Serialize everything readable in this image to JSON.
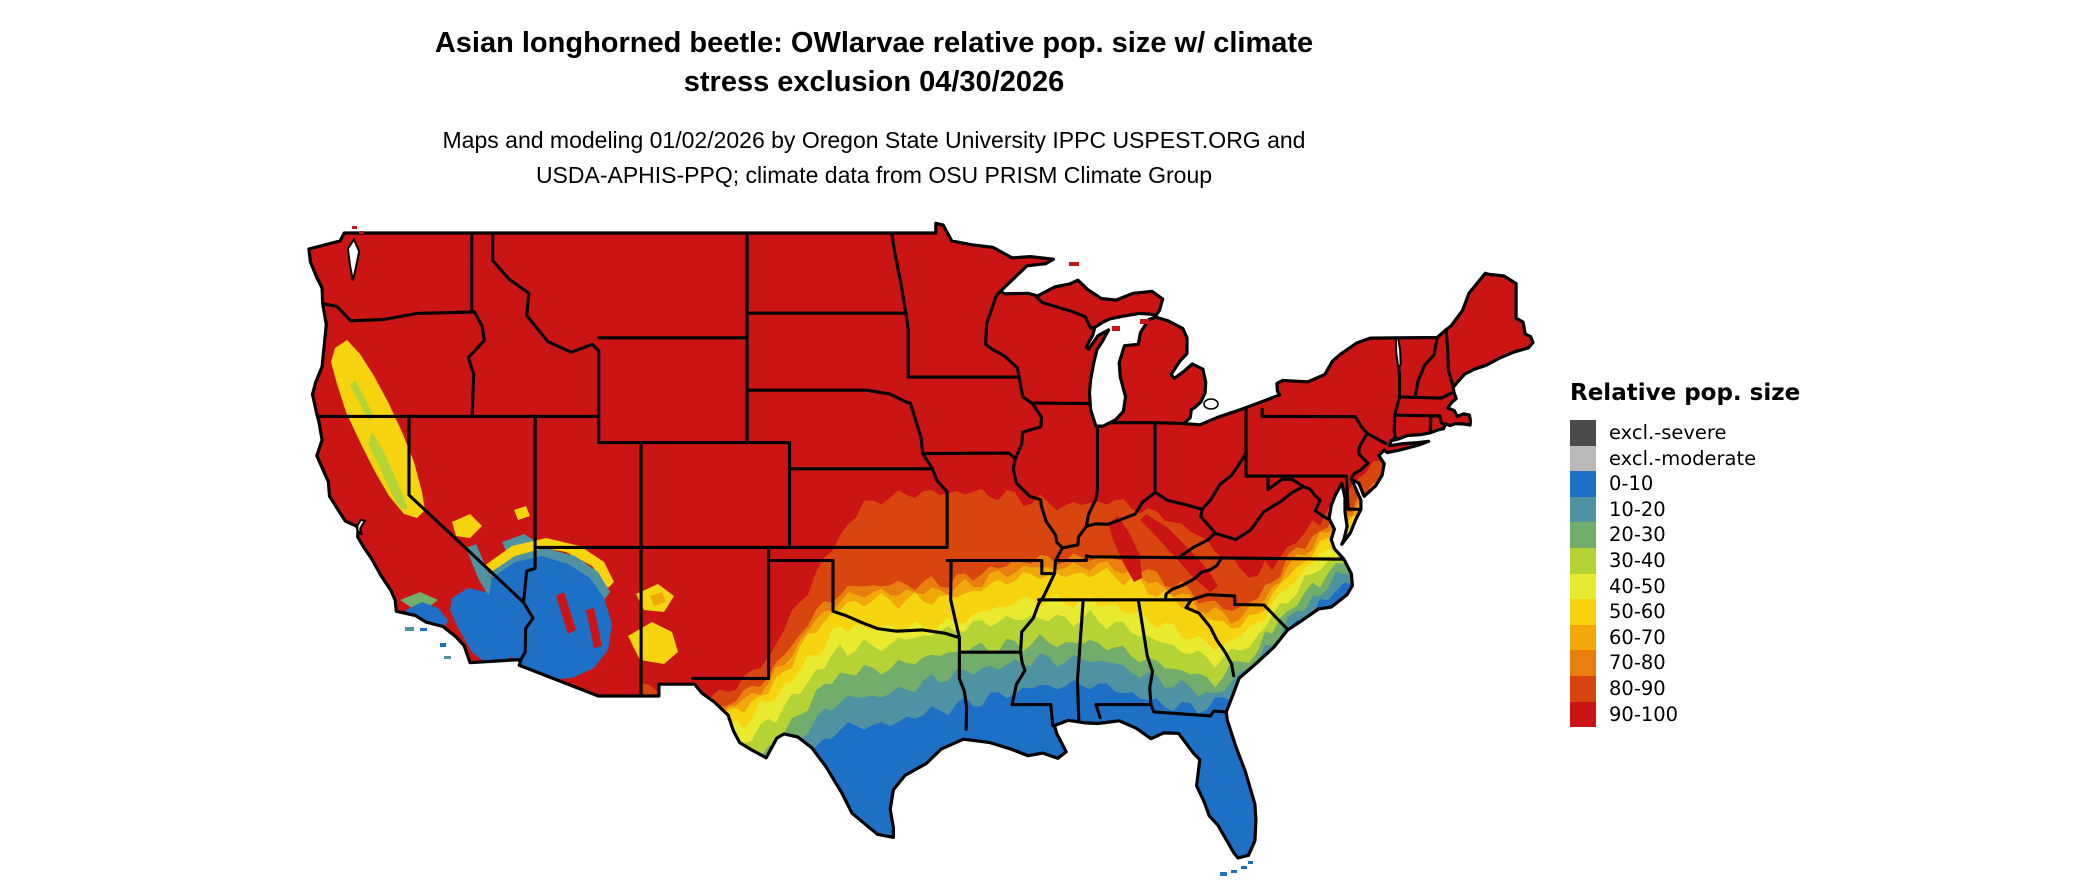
{
  "title": {
    "line1": "Asian longhorned beetle: OWlarvae relative pop. size w/ climate",
    "line2": "stress exclusion 04/30/2026"
  },
  "subtitle": {
    "line1": "Maps and modeling 01/02/2026 by Oregon State University IPPC USPEST.ORG and",
    "line2": "USDA-APHIS-PPQ; climate data from OSU PRISM Climate Group"
  },
  "legend": {
    "title": "Relative pop. size",
    "entries": [
      {
        "label": "excl.-severe",
        "color": "#4a4a4a"
      },
      {
        "label": "excl.-moderate",
        "color": "#b9b9b9"
      },
      {
        "label": "0-10",
        "color": "#1d70c6"
      },
      {
        "label": "10-20",
        "color": "#4f92a2"
      },
      {
        "label": "20-30",
        "color": "#72ad6b"
      },
      {
        "label": "30-40",
        "color": "#b5d335"
      },
      {
        "label": "40-50",
        "color": "#e9e930"
      },
      {
        "label": "50-60",
        "color": "#f7d410"
      },
      {
        "label": "60-70",
        "color": "#f2a70b"
      },
      {
        "label": "70-80",
        "color": "#e87e0d"
      },
      {
        "label": "80-90",
        "color": "#d9450f"
      },
      {
        "label": "90-100",
        "color": "#cb1414"
      }
    ]
  },
  "map": {
    "type": "choropleth-raster",
    "region": "Contiguous United States",
    "background": "#ffffff",
    "state_border_color": "#000000",
    "band_order_north_to_south": [
      "90-100",
      "80-90",
      "70-80",
      "60-70",
      "50-60",
      "40-50",
      "30-40",
      "20-30",
      "10-20",
      "0-10"
    ]
  }
}
